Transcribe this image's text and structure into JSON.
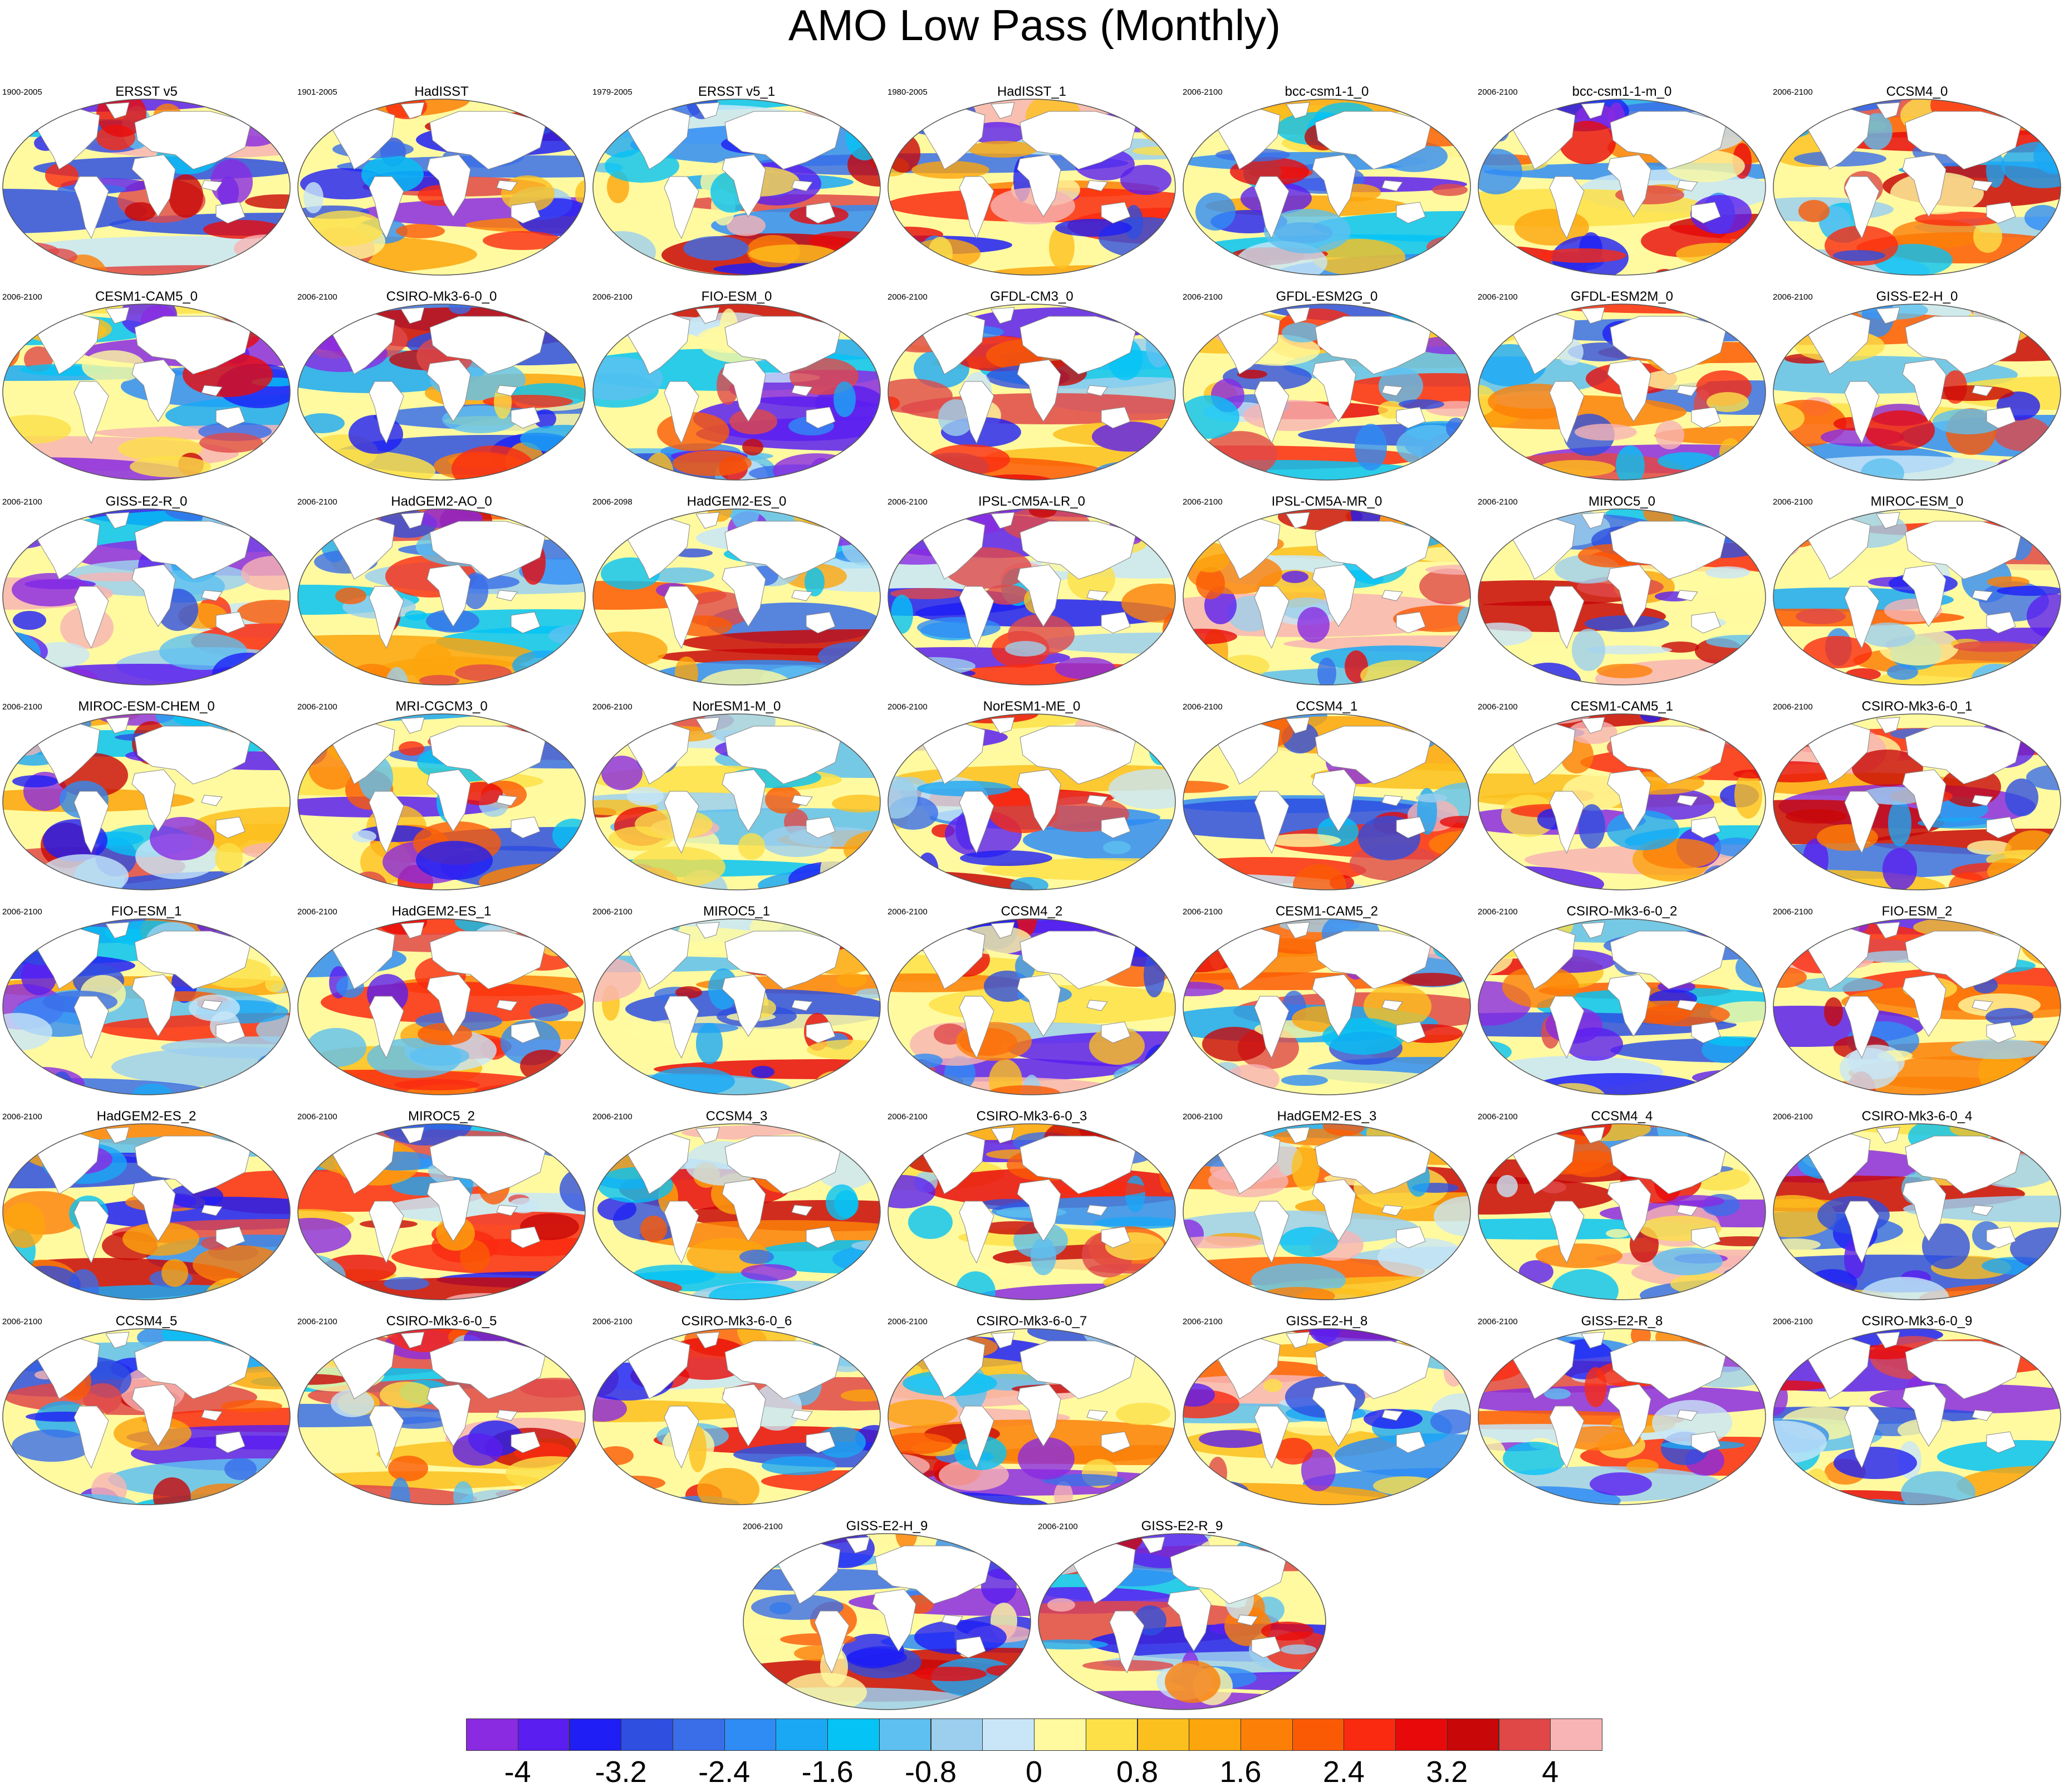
{
  "title": "AMO Low Pass (Monthly)",
  "chart_data": {
    "type": "heatmap",
    "title": "AMO Low Pass (Monthly)",
    "projection": "global map (ellipse)",
    "panels": [
      {
        "name": "ERSST v5",
        "period": "1900-2005"
      },
      {
        "name": "HadISST",
        "period": "1901-2005"
      },
      {
        "name": "ERSST v5_1",
        "period": "1979-2005"
      },
      {
        "name": "HadISST_1",
        "period": "1980-2005"
      },
      {
        "name": "bcc-csm1-1_0",
        "period": "2006-2100"
      },
      {
        "name": "bcc-csm1-1-m_0",
        "period": "2006-2100"
      },
      {
        "name": "CCSM4_0",
        "period": "2006-2100"
      },
      {
        "name": "CESM1-CAM5_0",
        "period": "2006-2100"
      },
      {
        "name": "CSIRO-Mk3-6-0_0",
        "period": "2006-2100"
      },
      {
        "name": "FIO-ESM_0",
        "period": "2006-2100"
      },
      {
        "name": "GFDL-CM3_0",
        "period": "2006-2100"
      },
      {
        "name": "GFDL-ESM2G_0",
        "period": "2006-2100"
      },
      {
        "name": "GFDL-ESM2M_0",
        "period": "2006-2100"
      },
      {
        "name": "GISS-E2-H_0",
        "period": "2006-2100"
      },
      {
        "name": "GISS-E2-R_0",
        "period": "2006-2100"
      },
      {
        "name": "HadGEM2-AO_0",
        "period": "2006-2100"
      },
      {
        "name": "HadGEM2-ES_0",
        "period": "2006-2098"
      },
      {
        "name": "IPSL-CM5A-LR_0",
        "period": "2006-2100"
      },
      {
        "name": "IPSL-CM5A-MR_0",
        "period": "2006-2100"
      },
      {
        "name": "MIROC5_0",
        "period": "2006-2100"
      },
      {
        "name": "MIROC-ESM_0",
        "period": "2006-2100"
      },
      {
        "name": "MIROC-ESM-CHEM_0",
        "period": "2006-2100"
      },
      {
        "name": "MRI-CGCM3_0",
        "period": "2006-2100"
      },
      {
        "name": "NorESM1-M_0",
        "period": "2006-2100"
      },
      {
        "name": "NorESM1-ME_0",
        "period": "2006-2100"
      },
      {
        "name": "CCSM4_1",
        "period": "2006-2100"
      },
      {
        "name": "CESM1-CAM5_1",
        "period": "2006-2100"
      },
      {
        "name": "CSIRO-Mk3-6-0_1",
        "period": "2006-2100"
      },
      {
        "name": "FIO-ESM_1",
        "period": "2006-2100"
      },
      {
        "name": "HadGEM2-ES_1",
        "period": "2006-2100"
      },
      {
        "name": "MIROC5_1",
        "period": "2006-2100"
      },
      {
        "name": "CCSM4_2",
        "period": "2006-2100"
      },
      {
        "name": "CESM1-CAM5_2",
        "period": "2006-2100"
      },
      {
        "name": "CSIRO-Mk3-6-0_2",
        "period": "2006-2100"
      },
      {
        "name": "FIO-ESM_2",
        "period": "2006-2100"
      },
      {
        "name": "HadGEM2-ES_2",
        "period": "2006-2100"
      },
      {
        "name": "MIROC5_2",
        "period": "2006-2100"
      },
      {
        "name": "CCSM4_3",
        "period": "2006-2100"
      },
      {
        "name": "CSIRO-Mk3-6-0_3",
        "period": "2006-2100"
      },
      {
        "name": "HadGEM2-ES_3",
        "period": "2006-2100"
      },
      {
        "name": "CCSM4_4",
        "period": "2006-2100"
      },
      {
        "name": "CSIRO-Mk3-6-0_4",
        "period": "2006-2100"
      },
      {
        "name": "CCSM4_5",
        "period": "2006-2100"
      },
      {
        "name": "CSIRO-Mk3-6-0_5",
        "period": "2006-2100"
      },
      {
        "name": "CSIRO-Mk3-6-0_6",
        "period": "2006-2100"
      },
      {
        "name": "CSIRO-Mk3-6-0_7",
        "period": "2006-2100"
      },
      {
        "name": "GISS-E2-H_8",
        "period": "2006-2100"
      },
      {
        "name": "GISS-E2-R_8",
        "period": "2006-2100"
      },
      {
        "name": "CSIRO-Mk3-6-0_9",
        "period": "2006-2100"
      },
      {
        "name": "GISS-E2-H_9",
        "period": "2006-2100"
      },
      {
        "name": "GISS-E2-R_9",
        "period": "2006-2100"
      }
    ],
    "colorbar": {
      "colors": [
        "#8a2be2",
        "#5a1ef0",
        "#1e1ef5",
        "#2e4fe0",
        "#3a6ee8",
        "#2f8cf5",
        "#1aa8f5",
        "#05c3f5",
        "#5ec0f0",
        "#9ccfee",
        "#c8e6f8",
        "#fffaa0",
        "#fde048",
        "#fcc01e",
        "#fca50c",
        "#fc8008",
        "#fb5a05",
        "#fa2a10",
        "#e80a0a",
        "#c80808",
        "#e04848",
        "#f8b4b4"
      ],
      "tick_labels": [
        "-4",
        "-3.2",
        "-2.4",
        "-1.6",
        "-0.8",
        "0",
        "0.8",
        "1.6",
        "2.4",
        "3.2",
        "4"
      ],
      "tick_values": [
        -4,
        -3.2,
        -2.4,
        -1.6,
        -0.8,
        0,
        0.8,
        1.6,
        2.4,
        3.2,
        4
      ],
      "range": [
        -4.4,
        4.4
      ]
    }
  }
}
